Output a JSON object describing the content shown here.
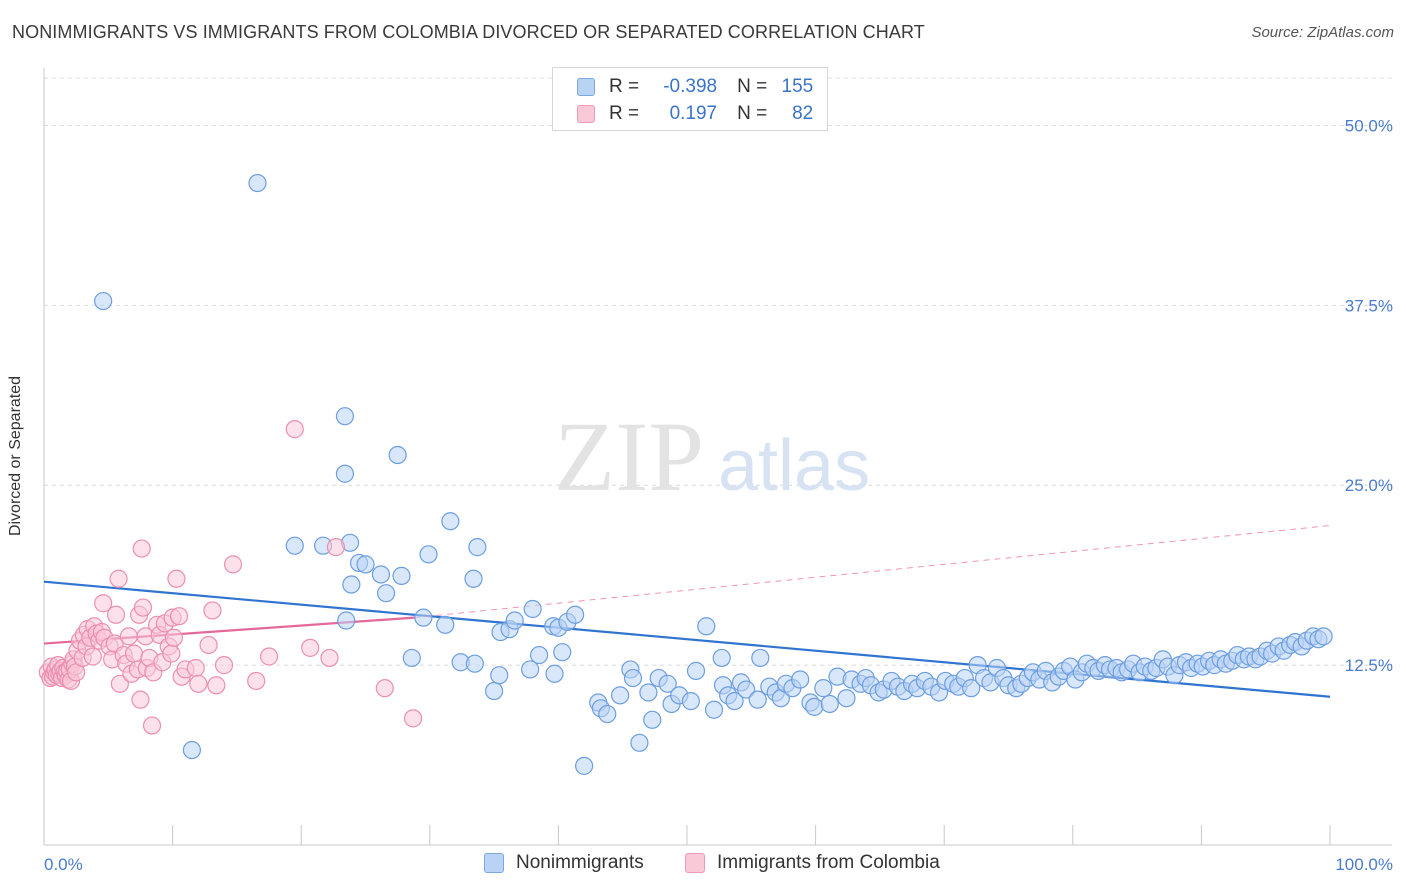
{
  "title": "NONIMMIGRANTS VS IMMIGRANTS FROM COLOMBIA DIVORCED OR SEPARATED CORRELATION CHART",
  "source": "Source: ZipAtlas.com",
  "watermark": {
    "zip": "ZIP",
    "atlas": "atlas"
  },
  "legend_box": {
    "rows": [
      {
        "r_label": "R =",
        "r_value": "-0.398",
        "n_label": "N =",
        "n_value": "155"
      },
      {
        "r_label": "R =",
        "r_value": "0.197",
        "n_label": "N =",
        "n_value": "82"
      }
    ]
  },
  "colors": {
    "blue_fill": "#b9d3f5",
    "blue_stroke": "#6d9ee0",
    "blue_line": "#2f74d0",
    "pink_fill": "#f9c9d8",
    "pink_stroke": "#ec8fae",
    "pink_line": "#e4689a",
    "tick_text": "#4a7cc9",
    "grid": "#dcdcdc"
  },
  "chart_data": {
    "type": "scatter",
    "title": "NONIMMIGRANTS VS IMMIGRANTS FROM COLOMBIA DIVORCED OR SEPARATED CORRELATION CHART",
    "xlabel": "",
    "ylabel": "Divorced or Separated",
    "xlim": [
      0,
      100
    ],
    "ylim": [
      0,
      53.3
    ],
    "x_tick_labels": [
      "0.0%",
      "100.0%"
    ],
    "y_ticks": [
      12.5,
      25.0,
      37.5,
      50.0
    ],
    "y_tick_labels": [
      "12.5%",
      "25.0%",
      "37.5%",
      "50.0%"
    ],
    "grid": "horizontal dashed",
    "legend_placement": "top-center and bottom",
    "series": [
      {
        "name": "Nonimmigrants",
        "r": -0.398,
        "n": 155,
        "trend": {
          "x": [
            0,
            100
          ],
          "y": [
            18.3,
            10.3
          ]
        },
        "points": [
          [
            4.6,
            37.8
          ],
          [
            16.6,
            46.0
          ],
          [
            11.5,
            6.6
          ],
          [
            23.5,
            15.6
          ],
          [
            19.5,
            20.8
          ],
          [
            21.7,
            20.8
          ],
          [
            23.8,
            21.0
          ],
          [
            23.9,
            18.1
          ],
          [
            24.5,
            19.6
          ],
          [
            25.0,
            19.5
          ],
          [
            26.2,
            18.8
          ],
          [
            26.6,
            17.5
          ],
          [
            23.4,
            25.8
          ],
          [
            23.4,
            29.8
          ],
          [
            27.8,
            18.7
          ],
          [
            27.5,
            27.1
          ],
          [
            29.9,
            20.2
          ],
          [
            31.6,
            22.5
          ],
          [
            33.7,
            20.7
          ],
          [
            33.4,
            18.5
          ],
          [
            38.5,
            13.2
          ],
          [
            31.2,
            15.3
          ],
          [
            29.5,
            15.8
          ],
          [
            28.6,
            13.0
          ],
          [
            32.4,
            12.7
          ],
          [
            33.5,
            12.6
          ],
          [
            35.0,
            10.7
          ],
          [
            35.4,
            11.8
          ],
          [
            35.5,
            14.8
          ],
          [
            36.2,
            15.0
          ],
          [
            36.6,
            15.6
          ],
          [
            38.0,
            16.4
          ],
          [
            37.8,
            12.2
          ],
          [
            39.6,
            15.2
          ],
          [
            40.0,
            15.1
          ],
          [
            40.7,
            15.5
          ],
          [
            40.3,
            13.4
          ],
          [
            39.7,
            11.9
          ],
          [
            41.3,
            16.0
          ],
          [
            42.0,
            5.5
          ],
          [
            43.1,
            9.9
          ],
          [
            43.3,
            9.5
          ],
          [
            43.8,
            9.1
          ],
          [
            44.8,
            10.4
          ],
          [
            45.6,
            12.2
          ],
          [
            45.8,
            11.6
          ],
          [
            46.3,
            7.1
          ],
          [
            47.0,
            10.6
          ],
          [
            47.3,
            8.7
          ],
          [
            47.8,
            11.6
          ],
          [
            48.5,
            11.2
          ],
          [
            48.8,
            9.8
          ],
          [
            49.4,
            10.4
          ],
          [
            50.3,
            10.0
          ],
          [
            50.7,
            12.1
          ],
          [
            51.5,
            15.2
          ],
          [
            52.1,
            9.4
          ],
          [
            52.7,
            13.0
          ],
          [
            52.8,
            11.1
          ],
          [
            53.2,
            10.4
          ],
          [
            53.7,
            10.0
          ],
          [
            54.2,
            11.3
          ],
          [
            54.6,
            10.8
          ],
          [
            55.5,
            10.1
          ],
          [
            55.7,
            13.0
          ],
          [
            56.4,
            11.0
          ],
          [
            56.9,
            10.6
          ],
          [
            57.3,
            10.2
          ],
          [
            57.7,
            11.2
          ],
          [
            58.2,
            10.9
          ],
          [
            58.8,
            11.5
          ],
          [
            59.6,
            9.9
          ],
          [
            59.9,
            9.6
          ],
          [
            60.6,
            10.9
          ],
          [
            61.1,
            9.8
          ],
          [
            61.7,
            11.7
          ],
          [
            62.4,
            10.2
          ],
          [
            62.8,
            11.5
          ],
          [
            63.5,
            11.2
          ],
          [
            63.9,
            11.6
          ],
          [
            64.3,
            11.1
          ],
          [
            64.9,
            10.6
          ],
          [
            65.3,
            10.8
          ],
          [
            65.9,
            11.4
          ],
          [
            66.4,
            11.0
          ],
          [
            66.9,
            10.7
          ],
          [
            67.5,
            11.2
          ],
          [
            67.9,
            10.9
          ],
          [
            68.5,
            11.4
          ],
          [
            69.0,
            11.0
          ],
          [
            69.6,
            10.6
          ],
          [
            70.1,
            11.4
          ],
          [
            70.7,
            11.2
          ],
          [
            71.1,
            11.0
          ],
          [
            71.6,
            11.6
          ],
          [
            72.1,
            10.9
          ],
          [
            72.6,
            12.5
          ],
          [
            73.1,
            11.6
          ],
          [
            73.6,
            11.3
          ],
          [
            74.1,
            12.3
          ],
          [
            74.6,
            11.6
          ],
          [
            75.0,
            11.1
          ],
          [
            75.6,
            10.9
          ],
          [
            76.0,
            11.2
          ],
          [
            76.5,
            11.6
          ],
          [
            76.9,
            12.0
          ],
          [
            77.4,
            11.5
          ],
          [
            77.9,
            12.1
          ],
          [
            78.4,
            11.3
          ],
          [
            78.9,
            11.7
          ],
          [
            79.3,
            12.1
          ],
          [
            79.8,
            12.4
          ],
          [
            80.2,
            11.5
          ],
          [
            80.7,
            12.0
          ],
          [
            81.1,
            12.6
          ],
          [
            81.6,
            12.3
          ],
          [
            82.0,
            12.1
          ],
          [
            82.5,
            12.5
          ],
          [
            82.9,
            12.2
          ],
          [
            83.4,
            12.3
          ],
          [
            83.8,
            12.0
          ],
          [
            84.3,
            12.2
          ],
          [
            84.7,
            12.6
          ],
          [
            85.2,
            12.0
          ],
          [
            85.6,
            12.4
          ],
          [
            86.1,
            12.1
          ],
          [
            86.5,
            12.3
          ],
          [
            87.0,
            12.9
          ],
          [
            87.4,
            12.4
          ],
          [
            87.9,
            11.8
          ],
          [
            88.3,
            12.5
          ],
          [
            88.8,
            12.7
          ],
          [
            89.2,
            12.3
          ],
          [
            89.7,
            12.6
          ],
          [
            90.1,
            12.4
          ],
          [
            90.6,
            12.8
          ],
          [
            91.0,
            12.5
          ],
          [
            91.5,
            12.9
          ],
          [
            91.9,
            12.6
          ],
          [
            92.4,
            12.8
          ],
          [
            92.8,
            13.2
          ],
          [
            93.3,
            12.9
          ],
          [
            93.7,
            13.1
          ],
          [
            94.2,
            12.9
          ],
          [
            94.6,
            13.1
          ],
          [
            95.1,
            13.5
          ],
          [
            95.5,
            13.3
          ],
          [
            96.0,
            13.8
          ],
          [
            96.4,
            13.5
          ],
          [
            96.9,
            13.9
          ],
          [
            97.3,
            14.1
          ],
          [
            97.8,
            13.8
          ],
          [
            98.2,
            14.2
          ],
          [
            98.7,
            14.5
          ],
          [
            99.1,
            14.3
          ],
          [
            99.5,
            14.5
          ]
        ]
      },
      {
        "name": "Immigrants from Colombia",
        "r": 0.197,
        "n": 82,
        "trend": {
          "x": [
            0,
            28.8
          ],
          "y": [
            14.0,
            15.8
          ]
        },
        "trend_extension": {
          "x": [
            28.8,
            100
          ],
          "y": [
            15.8,
            22.2
          ]
        },
        "points": [
          [
            0.3,
            12.0
          ],
          [
            0.5,
            11.6
          ],
          [
            0.6,
            12.4
          ],
          [
            0.7,
            11.7
          ],
          [
            0.8,
            12.0
          ],
          [
            0.9,
            12.2
          ],
          [
            1.0,
            11.8
          ],
          [
            1.1,
            12.5
          ],
          [
            1.2,
            11.9
          ],
          [
            1.3,
            12.1
          ],
          [
            1.4,
            11.6
          ],
          [
            1.5,
            12.3
          ],
          [
            1.6,
            12.0
          ],
          [
            1.7,
            11.8
          ],
          [
            1.8,
            12.1
          ],
          [
            1.9,
            11.5
          ],
          [
            2.0,
            12.2
          ],
          [
            2.1,
            11.4
          ],
          [
            2.2,
            12.6
          ],
          [
            2.3,
            12.9
          ],
          [
            2.4,
            12.4
          ],
          [
            2.5,
            12.0
          ],
          [
            2.6,
            13.5
          ],
          [
            2.8,
            14.2
          ],
          [
            3.0,
            13.0
          ],
          [
            3.1,
            14.6
          ],
          [
            3.3,
            13.8
          ],
          [
            3.4,
            15.0
          ],
          [
            3.6,
            14.4
          ],
          [
            3.8,
            13.1
          ],
          [
            3.9,
            15.2
          ],
          [
            4.1,
            14.7
          ],
          [
            4.3,
            14.2
          ],
          [
            4.5,
            14.8
          ],
          [
            4.7,
            14.4
          ],
          [
            4.6,
            16.8
          ],
          [
            5.1,
            13.8
          ],
          [
            5.3,
            12.9
          ],
          [
            5.5,
            14.0
          ],
          [
            5.6,
            16.0
          ],
          [
            5.8,
            18.5
          ],
          [
            5.9,
            11.2
          ],
          [
            6.2,
            13.2
          ],
          [
            6.4,
            12.6
          ],
          [
            6.6,
            14.5
          ],
          [
            6.8,
            11.9
          ],
          [
            7.0,
            13.3
          ],
          [
            7.3,
            12.2
          ],
          [
            7.4,
            16.0
          ],
          [
            7.5,
            10.1
          ],
          [
            7.6,
            20.6
          ],
          [
            7.7,
            16.5
          ],
          [
            7.9,
            14.5
          ],
          [
            8.0,
            12.3
          ],
          [
            8.2,
            13.0
          ],
          [
            8.4,
            8.3
          ],
          [
            8.5,
            12.0
          ],
          [
            8.8,
            15.3
          ],
          [
            9.0,
            14.6
          ],
          [
            9.2,
            12.7
          ],
          [
            9.4,
            15.4
          ],
          [
            9.7,
            13.8
          ],
          [
            9.9,
            13.3
          ],
          [
            10.0,
            15.8
          ],
          [
            10.1,
            14.4
          ],
          [
            10.3,
            18.5
          ],
          [
            10.5,
            15.9
          ],
          [
            10.7,
            11.7
          ],
          [
            11.0,
            12.2
          ],
          [
            11.8,
            12.3
          ],
          [
            12.0,
            11.2
          ],
          [
            12.8,
            13.9
          ],
          [
            13.1,
            16.3
          ],
          [
            13.4,
            11.1
          ],
          [
            14.0,
            12.5
          ],
          [
            14.7,
            19.5
          ],
          [
            16.5,
            11.4
          ],
          [
            17.5,
            13.1
          ],
          [
            19.5,
            28.9
          ],
          [
            20.7,
            13.7
          ],
          [
            22.2,
            13.0
          ],
          [
            22.7,
            20.7
          ],
          [
            26.5,
            10.9
          ],
          [
            28.7,
            8.8
          ]
        ]
      }
    ]
  }
}
